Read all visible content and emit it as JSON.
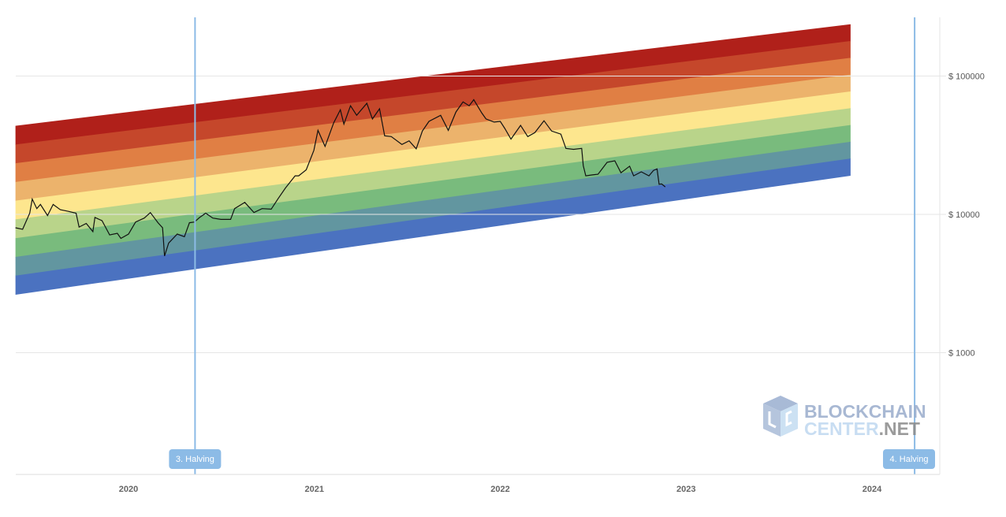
{
  "chart_data": {
    "type": "area",
    "title": "",
    "xlabel": "",
    "ylabel": "",
    "y_scale": "log",
    "y_ticks": [
      {
        "value": 100000,
        "label": "$ 100000"
      },
      {
        "value": 10000,
        "label": "$ 10000"
      },
      {
        "value": 1000,
        "label": "$ 1000"
      }
    ],
    "x_ticks": [
      {
        "value": "2020-01-01",
        "label": "2020"
      },
      {
        "value": "2021-01-01",
        "label": "2021"
      },
      {
        "value": "2022-01-01",
        "label": "2022"
      },
      {
        "value": "2023-01-01",
        "label": "2023"
      },
      {
        "value": "2024-01-01",
        "label": "2024"
      }
    ],
    "xlim": [
      "2019-05-24",
      "2024-07-20"
    ],
    "grid": "horizontal",
    "rainbow_bands": {
      "start_date": "2019-05-24",
      "end_date": "2023-11-20",
      "top_price": {
        "start": 43700,
        "end": 237000
      },
      "bottom_price": {
        "start": 2640,
        "end": 19150
      },
      "colors": [
        "#b0201a",
        "#c5472b",
        "#e07f44",
        "#ecb36c",
        "#fde68e",
        "#b9d48a",
        "#79bb7d",
        "#6296a0",
        "#4b72c0"
      ]
    },
    "halvings": [
      {
        "date": "2020-05-11",
        "label": "3. Halving"
      },
      {
        "date": "2024-03-25",
        "label": "4. Halving"
      }
    ],
    "halving_color": "#8cbbe6",
    "series": [
      {
        "color": "#111111",
        "points": [
          [
            "2019-05-24",
            8000
          ],
          [
            "2019-06-07",
            7800
          ],
          [
            "2019-06-21",
            10200
          ],
          [
            "2019-06-26",
            12900
          ],
          [
            "2019-07-05",
            11000
          ],
          [
            "2019-07-12",
            11800
          ],
          [
            "2019-07-26",
            9800
          ],
          [
            "2019-08-06",
            11800
          ],
          [
            "2019-08-20",
            10800
          ],
          [
            "2019-09-06",
            10500
          ],
          [
            "2019-09-20",
            10200
          ],
          [
            "2019-09-26",
            8100
          ],
          [
            "2019-10-10",
            8600
          ],
          [
            "2019-10-23",
            7500
          ],
          [
            "2019-10-27",
            9500
          ],
          [
            "2019-11-10",
            9000
          ],
          [
            "2019-11-25",
            7100
          ],
          [
            "2019-12-10",
            7300
          ],
          [
            "2019-12-17",
            6700
          ],
          [
            "2020-01-01",
            7200
          ],
          [
            "2020-01-15",
            8800
          ],
          [
            "2020-02-01",
            9400
          ],
          [
            "2020-02-13",
            10300
          ],
          [
            "2020-02-28",
            8700
          ],
          [
            "2020-03-08",
            8000
          ],
          [
            "2020-03-12",
            5000
          ],
          [
            "2020-03-20",
            6200
          ],
          [
            "2020-04-06",
            7200
          ],
          [
            "2020-04-20",
            6900
          ],
          [
            "2020-04-30",
            8700
          ],
          [
            "2020-05-10",
            8800
          ],
          [
            "2020-05-20",
            9500
          ],
          [
            "2020-06-01",
            10200
          ],
          [
            "2020-06-15",
            9400
          ],
          [
            "2020-07-01",
            9200
          ],
          [
            "2020-07-20",
            9200
          ],
          [
            "2020-07-28",
            11000
          ],
          [
            "2020-08-17",
            12200
          ],
          [
            "2020-09-04",
            10300
          ],
          [
            "2020-09-20",
            11000
          ],
          [
            "2020-10-08",
            10900
          ],
          [
            "2020-10-21",
            12900
          ],
          [
            "2020-11-05",
            15500
          ],
          [
            "2020-11-24",
            19000
          ],
          [
            "2020-12-01",
            19000
          ],
          [
            "2020-12-16",
            21000
          ],
          [
            "2020-12-31",
            29000
          ],
          [
            "2021-01-08",
            40500
          ],
          [
            "2021-01-22",
            31000
          ],
          [
            "2021-02-08",
            46000
          ],
          [
            "2021-02-21",
            57000
          ],
          [
            "2021-02-28",
            45000
          ],
          [
            "2021-03-13",
            61000
          ],
          [
            "2021-03-25",
            52000
          ],
          [
            "2021-04-14",
            63500
          ],
          [
            "2021-04-25",
            49000
          ],
          [
            "2021-05-09",
            58000
          ],
          [
            "2021-05-19",
            37000
          ],
          [
            "2021-06-01",
            36500
          ],
          [
            "2021-06-22",
            32000
          ],
          [
            "2021-07-06",
            34000
          ],
          [
            "2021-07-20",
            29800
          ],
          [
            "2021-08-01",
            40000
          ],
          [
            "2021-08-14",
            47000
          ],
          [
            "2021-09-06",
            52000
          ],
          [
            "2021-09-21",
            40500
          ],
          [
            "2021-10-06",
            55000
          ],
          [
            "2021-10-20",
            65000
          ],
          [
            "2021-11-01",
            61000
          ],
          [
            "2021-11-10",
            67500
          ],
          [
            "2021-11-26",
            54000
          ],
          [
            "2021-12-04",
            49000
          ],
          [
            "2021-12-20",
            46500
          ],
          [
            "2022-01-01",
            47000
          ],
          [
            "2022-01-10",
            41800
          ],
          [
            "2022-01-22",
            35000
          ],
          [
            "2022-02-10",
            44000
          ],
          [
            "2022-02-24",
            36500
          ],
          [
            "2022-03-10",
            39000
          ],
          [
            "2022-03-28",
            47500
          ],
          [
            "2022-04-12",
            40000
          ],
          [
            "2022-04-30",
            38000
          ],
          [
            "2022-05-10",
            30000
          ],
          [
            "2022-05-25",
            29500
          ],
          [
            "2022-06-10",
            30000
          ],
          [
            "2022-06-13",
            22500
          ],
          [
            "2022-06-18",
            19000
          ],
          [
            "2022-07-01",
            19300
          ],
          [
            "2022-07-12",
            19500
          ],
          [
            "2022-07-30",
            23800
          ],
          [
            "2022-08-14",
            24400
          ],
          [
            "2022-08-26",
            20000
          ],
          [
            "2022-09-12",
            22300
          ],
          [
            "2022-09-20",
            19000
          ],
          [
            "2022-10-05",
            20300
          ],
          [
            "2022-10-20",
            19000
          ],
          [
            "2022-10-29",
            20800
          ],
          [
            "2022-11-05",
            21300
          ],
          [
            "2022-11-09",
            16500
          ],
          [
            "2022-11-14",
            16600
          ],
          [
            "2022-11-21",
            15800
          ]
        ]
      }
    ]
  },
  "watermark": {
    "line1": "BLOCKCHAIN",
    "line2a": "CENTER",
    "line2b": ".NET"
  }
}
